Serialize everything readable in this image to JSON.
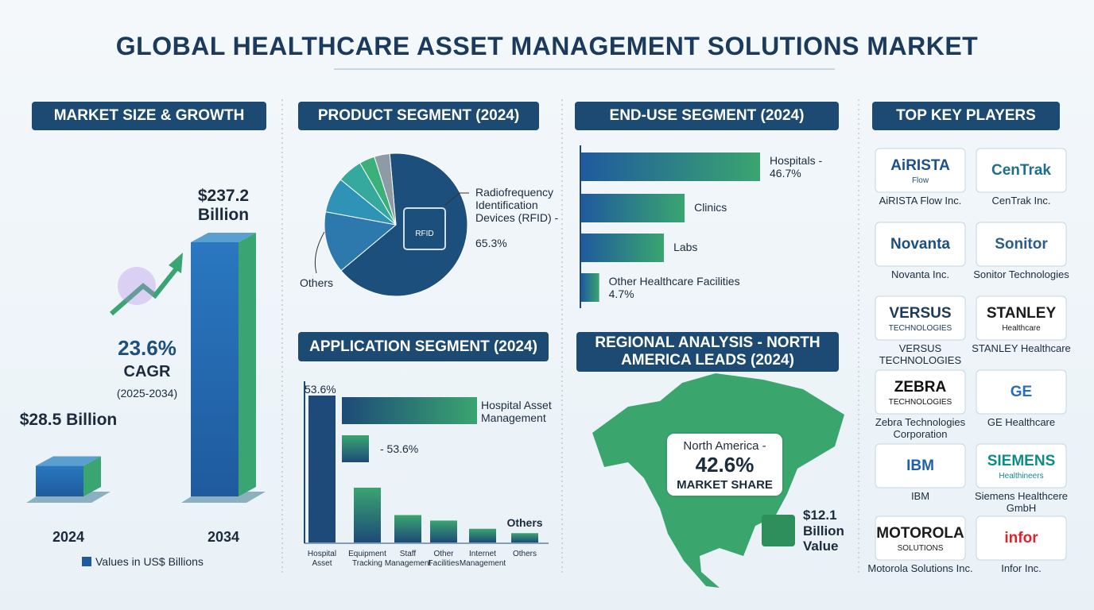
{
  "title": "GLOBAL HEALTHCARE ASSET MANAGEMENT SOLUTIONS MARKET",
  "chart_data": [
    {
      "type": "bar3d",
      "title": "MARKET SIZE & GROWTH",
      "categories": [
        "2024",
        "2034"
      ],
      "values": [
        28.5,
        237.2
      ],
      "value_labels": [
        "$28.5 Billion",
        "$237.2 Billion"
      ],
      "colors": [
        "#1f5a9e",
        "#3aa570"
      ],
      "annotations": [
        "23.6%",
        "CAGR",
        "(2025-2034)"
      ],
      "legend": "Values in US$ Billions"
    },
    {
      "type": "pie",
      "title": "PRODUCT SEGMENT (2024)",
      "categories": [
        "Radiofrequency Identification Devices (RFID) -",
        "Others",
        null,
        null,
        null,
        null
      ],
      "values": [
        65.3,
        14,
        8,
        5.7,
        3.5,
        3.5
      ],
      "value_labels": [
        "65.3%",
        null,
        null,
        null,
        null,
        null
      ],
      "colors": [
        "#1d4f7c",
        "#2d78ad",
        "#2f93b8",
        "#35a99e",
        "#3bb07a",
        "#8e9ba6"
      ],
      "icon_label": "RFID"
    },
    {
      "type": "hbar",
      "title": "END-USE SEGMENT (2024)",
      "categories": [
        "Hospitals -",
        "Clinics",
        "Labs",
        "Other Healthcare Facilities"
      ],
      "values": [
        46.7,
        27,
        21.6,
        4.7
      ],
      "value_labels": [
        "46.7%",
        null,
        null,
        "4.7%"
      ],
      "colors": [
        "#1f5a9e",
        "#3aa570"
      ]
    },
    {
      "type": "column",
      "title": "APPLICATION SEGMENT (2024)",
      "categories": [
        "Hospital Asset",
        "Equipment Tracking",
        "Staff Management",
        "Other Facilities",
        "Internet Management",
        "Others"
      ],
      "values": [
        53.6,
        20,
        10,
        8,
        5,
        3.4
      ],
      "value_labels": [
        "53.6%",
        null,
        null,
        null,
        null,
        null
      ],
      "colors": [
        "#1d4a78",
        "#3aa570"
      ],
      "annotations": [
        "Others"
      ],
      "legend": [
        "Hospital Asset Management",
        "- 53.6%"
      ]
    }
  ],
  "regional": {
    "title": "REGIONAL ANALYSIS - NORTH AMERICA LEADS (2024)",
    "region": "North America -",
    "share": "42.6%",
    "share_label": "MARKET SHARE",
    "value": "$12.1 Billion Value"
  },
  "key_players": {
    "title": "TOP KEY PLAYERS",
    "companies": [
      {
        "logo": "AiRISTA",
        "logo_sub": "Flow",
        "name": "AiRISTA Flow Inc.",
        "color": "#1e4f8a"
      },
      {
        "logo": "CenTrak",
        "name": "CenTrak Inc.",
        "color": "#1f6f8b"
      },
      {
        "logo": "Novanta",
        "name": "Novanta Inc.",
        "color": "#1d4f7c"
      },
      {
        "logo": "Sonitor",
        "name": "Sonitor Technologies",
        "color": "#2a5d8a"
      },
      {
        "logo": "VERSUS",
        "logo_sub": "TECHNOLOGIES",
        "name": "VERSUS TECHNOLOGIES",
        "color": "#1b3a5c"
      },
      {
        "logo": "STANLEY",
        "logo_sub": "Healthcare",
        "name": "STANLEY Healthcare",
        "color": "#1b1b1b"
      },
      {
        "logo": "ZEBRA",
        "logo_sub": "TECHNOLOGIES",
        "name": "Zebra Technologies Corporation",
        "color": "#111111"
      },
      {
        "logo": "GE",
        "name": "GE Healthcare",
        "color": "#2a6ebb"
      },
      {
        "logo": "IBM",
        "name": "IBM",
        "color": "#1f5fb0"
      },
      {
        "logo": "SIEMENS",
        "logo_sub": "Healthineers",
        "name": "Siemens Healthcere GmbH",
        "color": "#0f8a8a"
      },
      {
        "logo": "MOTOROLA",
        "logo_sub": "SOLUTIONS",
        "name": "Motorola Solutions Inc.",
        "color": "#1b1b1b"
      },
      {
        "logo": "infor",
        "name": "Infor Inc.",
        "color": "#d7262e"
      }
    ]
  }
}
